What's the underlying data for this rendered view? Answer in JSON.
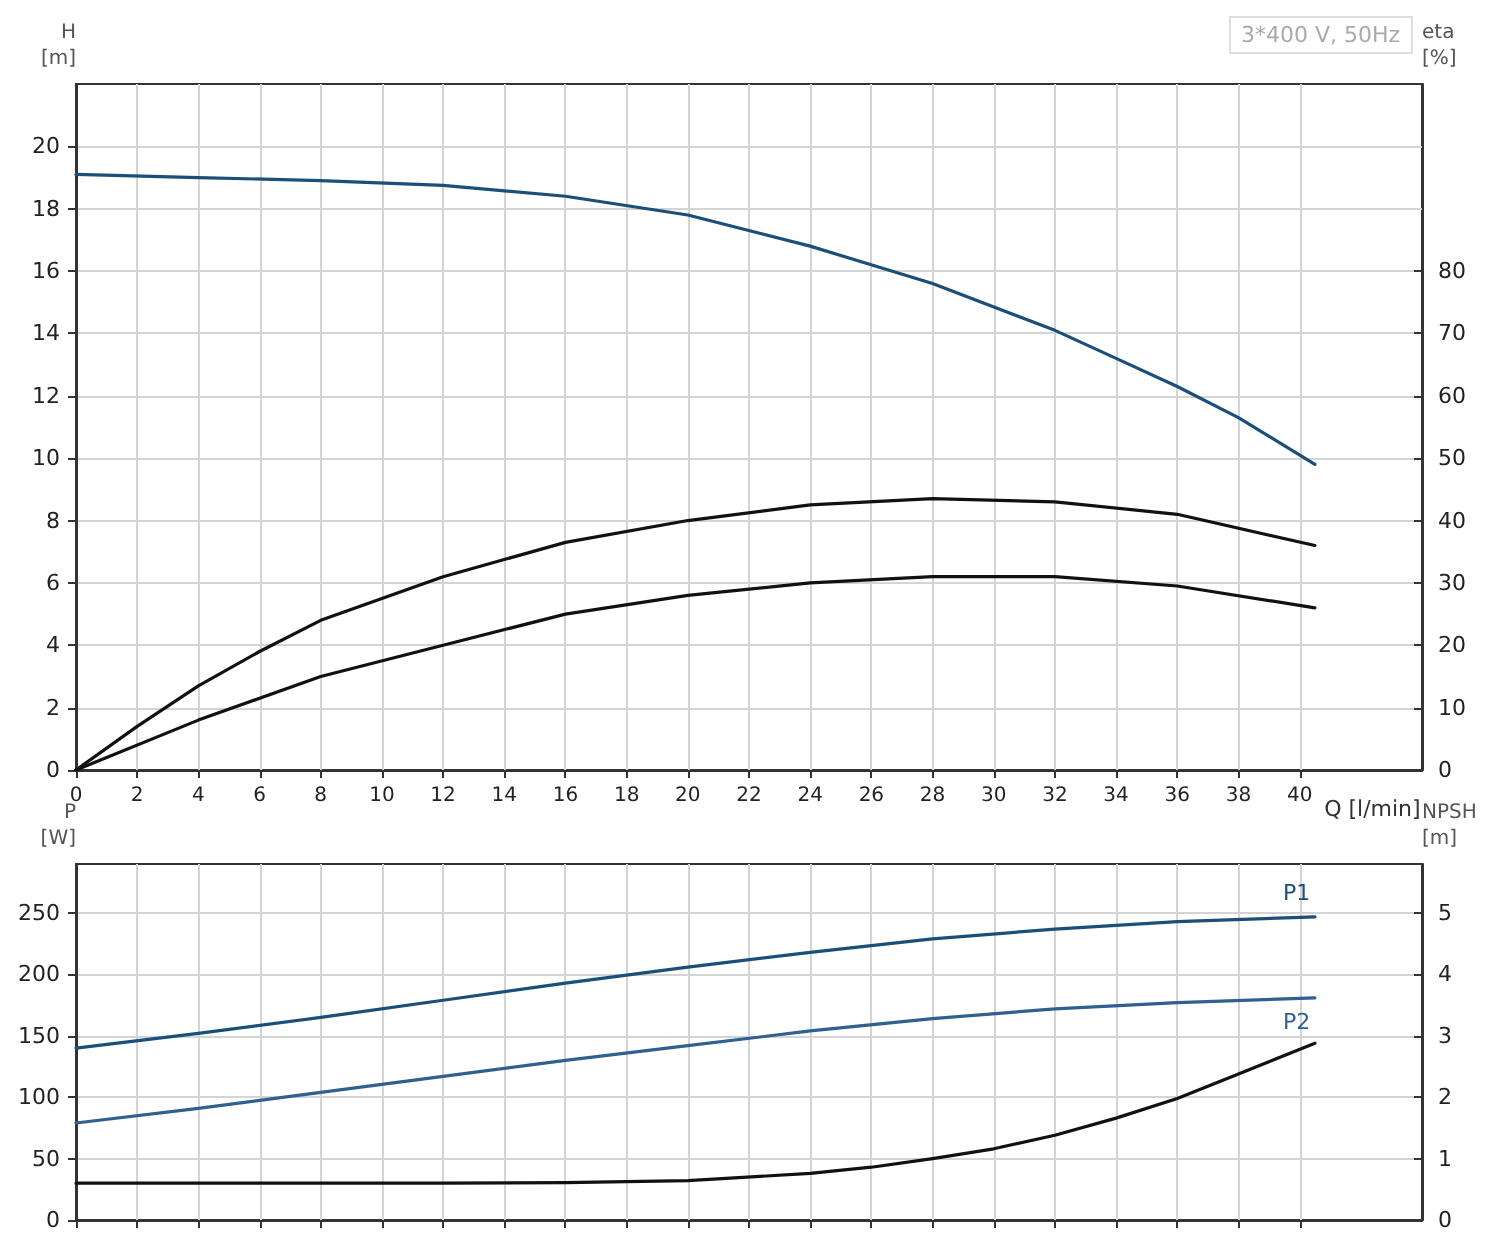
{
  "chart_data": [
    {
      "type": "line",
      "title": "3*400 V, 50Hz",
      "xlabel": "Q [l/min]",
      "ylabel": "H\n[m]",
      "y2label": "eta\n[%]",
      "xlim": [
        0,
        44
      ],
      "xticks": [
        0,
        2,
        4,
        6,
        8,
        10,
        12,
        14,
        16,
        18,
        20,
        22,
        24,
        26,
        28,
        30,
        32,
        34,
        36,
        38,
        40
      ],
      "ylim": [
        0,
        22
      ],
      "yticks": [
        0,
        2,
        4,
        6,
        8,
        10,
        12,
        14,
        16,
        18,
        20
      ],
      "y2lim": [
        0,
        110
      ],
      "y2ticks": [
        0,
        10,
        20,
        30,
        40,
        50,
        60,
        70,
        80
      ],
      "grid": true,
      "marker": "none",
      "line_style": "solid",
      "series": [
        {
          "color": "#1b4f7a",
          "x": [
            0,
            4,
            8,
            12,
            16,
            20,
            24,
            28,
            32,
            34,
            36,
            38,
            40.5
          ],
          "values": [
            19.1,
            19.0,
            18.9,
            18.75,
            18.4,
            17.8,
            16.8,
            15.6,
            14.1,
            13.2,
            12.3,
            11.3,
            9.8
          ]
        },
        {
          "color": "#111111",
          "axis": "y2",
          "x": [
            0,
            2,
            4,
            6,
            8,
            10,
            12,
            16,
            20,
            24,
            28,
            32,
            36,
            40.5
          ],
          "values": [
            0,
            7,
            13.5,
            19,
            24,
            27.5,
            31,
            36.5,
            40,
            42.5,
            43.5,
            43,
            41,
            36
          ]
        },
        {
          "color": "#111111",
          "axis": "y2",
          "x": [
            0,
            4,
            8,
            12,
            16,
            20,
            24,
            28,
            32,
            36,
            40.5
          ],
          "values": [
            0,
            8,
            15,
            20,
            25,
            28,
            30,
            31,
            31,
            29.5,
            26
          ]
        }
      ]
    },
    {
      "type": "line",
      "ylabel": "P\n[W]",
      "y2label": "NPSH\n[m]",
      "xlim": [
        0,
        44
      ],
      "xticks": [
        0,
        2,
        4,
        6,
        8,
        10,
        12,
        14,
        16,
        18,
        20,
        22,
        24,
        26,
        28,
        30,
        32,
        34,
        36,
        38,
        40
      ],
      "ylim": [
        0,
        290
      ],
      "yticks": [
        0,
        50,
        100,
        150,
        200,
        250
      ],
      "y2lim": [
        0,
        5.8
      ],
      "y2ticks": [
        0,
        1,
        2,
        3,
        4,
        5
      ],
      "tick_labels": "y",
      "grid": true,
      "marker": "none",
      "line_style": "solid",
      "series": [
        {
          "name": "P1",
          "color": "#1b4f7a",
          "x": [
            0,
            4,
            8,
            12,
            16,
            20,
            24,
            28,
            32,
            36,
            40.5
          ],
          "values": [
            140,
            152,
            165,
            179,
            193,
            206,
            218,
            229,
            237,
            243,
            247
          ]
        },
        {
          "name": "P2",
          "color": "#2f6090",
          "x": [
            0,
            4,
            8,
            12,
            16,
            20,
            24,
            28,
            32,
            36,
            40.5
          ],
          "values": [
            79,
            91,
            104,
            117,
            130,
            142,
            154,
            164,
            172,
            177,
            181
          ]
        },
        {
          "color": "#111111",
          "axis": "y2",
          "x": [
            0,
            12,
            16,
            20,
            24,
            26,
            28,
            30,
            32,
            34,
            36,
            38,
            40.5
          ],
          "values": [
            0.6,
            0.6,
            0.61,
            0.64,
            0.76,
            0.86,
            1.0,
            1.16,
            1.38,
            1.66,
            1.98,
            2.38,
            2.88
          ]
        }
      ]
    }
  ]
}
